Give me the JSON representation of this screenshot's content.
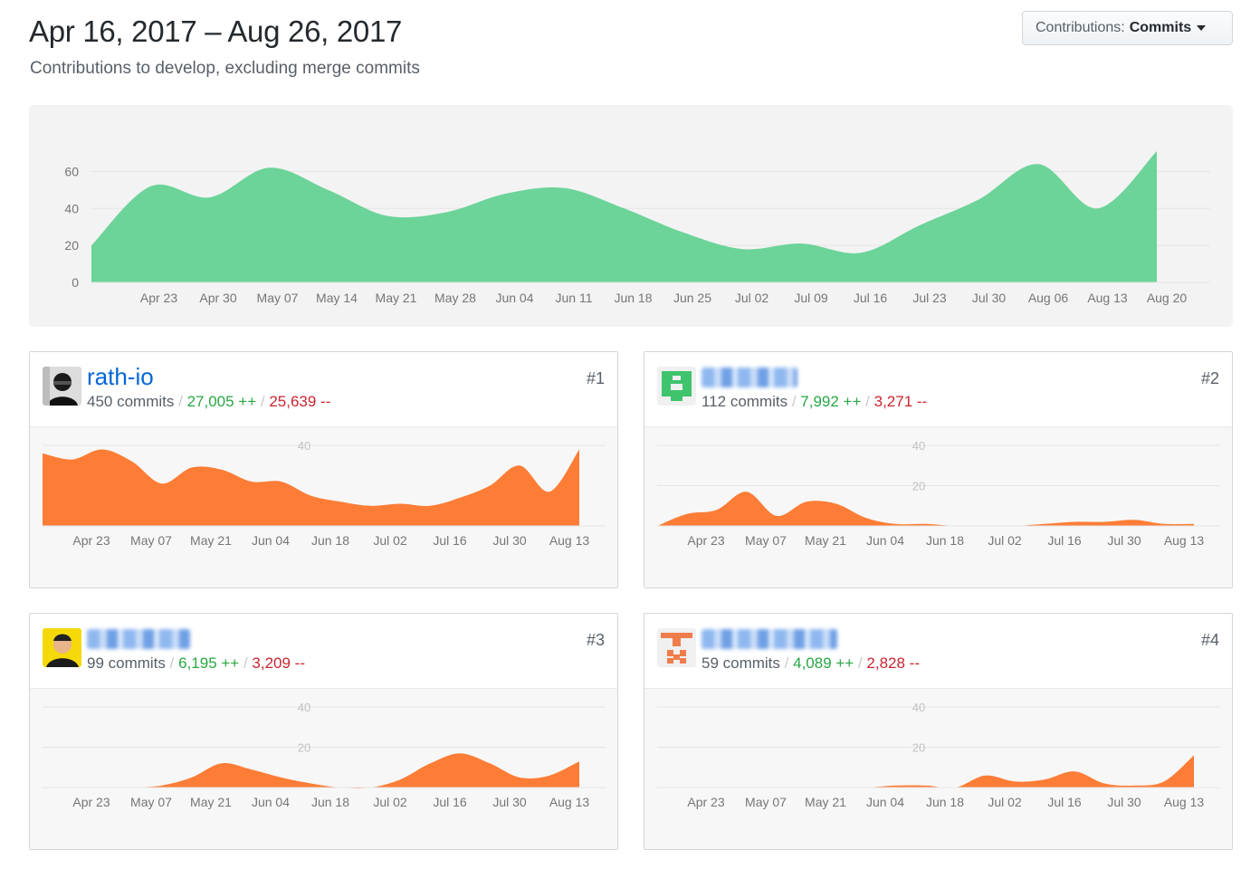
{
  "header": {
    "title": "Apr 16, 2017 – Aug 26, 2017",
    "subtitle": "Contributions to develop, excluding merge commits"
  },
  "dropdown": {
    "prefix": "Contributions:",
    "value": "Commits"
  },
  "colors": {
    "overview_fill": "#6cd399",
    "contributor_fill": "#fd7d36",
    "additions": "#28a745",
    "deletions": "#cb2431",
    "link": "#0366d6"
  },
  "chart_data": [
    {
      "type": "area",
      "x": [
        "Apr 16",
        "Apr 23",
        "Apr 30",
        "May 07",
        "May 14",
        "May 21",
        "May 28",
        "Jun 04",
        "Jun 11",
        "Jun 18",
        "Jun 25",
        "Jul 02",
        "Jul 09",
        "Jul 16",
        "Jul 23",
        "Jul 30",
        "Aug 06",
        "Aug 13",
        "Aug 20"
      ],
      "values": [
        20,
        52,
        46,
        62,
        50,
        36,
        38,
        48,
        51,
        40,
        27,
        18,
        21,
        16,
        31,
        45,
        64,
        40,
        71
      ],
      "tick_labels": [
        "Apr 23",
        "Apr 30",
        "May 07",
        "May 14",
        "May 21",
        "May 28",
        "Jun 04",
        "Jun 11",
        "Jun 18",
        "Jun 25",
        "Jul 02",
        "Jul 09",
        "Jul 16",
        "Jul 23",
        "Jul 30",
        "Aug 06",
        "Aug 13",
        "Aug 20"
      ],
      "y_ticks": [
        "0",
        "20",
        "40",
        "60"
      ],
      "ylim": [
        0,
        70
      ],
      "grid": true
    },
    {
      "type": "area",
      "x": [
        "Apr 16",
        "Apr 23",
        "Apr 30",
        "May 07",
        "May 14",
        "May 21",
        "May 28",
        "Jun 04",
        "Jun 11",
        "Jun 18",
        "Jun 25",
        "Jul 02",
        "Jul 09",
        "Jul 16",
        "Jul 23",
        "Jul 30",
        "Aug 06",
        "Aug 13",
        "Aug 20"
      ],
      "values": [
        36,
        33,
        38,
        32,
        21,
        29,
        28,
        22,
        22,
        15,
        12,
        10,
        11,
        10,
        14,
        20,
        30,
        17,
        38
      ],
      "tick_labels": [
        "Apr 23",
        "May 07",
        "May 21",
        "Jun 04",
        "Jun 18",
        "Jul 02",
        "Jul 16",
        "Jul 30",
        "Aug 13"
      ],
      "y_ticks": [
        "40"
      ],
      "ylim": [
        0,
        40
      ]
    },
    {
      "type": "area",
      "x": [
        "Apr 16",
        "Apr 23",
        "Apr 30",
        "May 07",
        "May 14",
        "May 21",
        "May 28",
        "Jun 04",
        "Jun 11",
        "Jun 18",
        "Jun 25",
        "Jul 02",
        "Jul 09",
        "Jul 16",
        "Jul 23",
        "Jul 30",
        "Aug 06",
        "Aug 13",
        "Aug 20"
      ],
      "values": [
        0,
        6,
        8,
        17,
        5,
        12,
        11,
        4,
        1,
        1,
        0,
        0,
        0,
        1,
        2,
        2,
        3,
        1,
        1
      ],
      "tick_labels": [
        "Apr 23",
        "May 07",
        "May 21",
        "Jun 04",
        "Jun 18",
        "Jul 02",
        "Jul 16",
        "Jul 30",
        "Aug 13"
      ],
      "y_ticks": [
        "40",
        "20"
      ],
      "ylim": [
        0,
        40
      ]
    },
    {
      "type": "area",
      "x": [
        "Apr 16",
        "Apr 23",
        "Apr 30",
        "May 07",
        "May 14",
        "May 21",
        "May 28",
        "Jun 04",
        "Jun 11",
        "Jun 18",
        "Jun 25",
        "Jul 02",
        "Jul 09",
        "Jul 16",
        "Jul 23",
        "Jul 30",
        "Aug 06",
        "Aug 13",
        "Aug 20"
      ],
      "values": [
        0,
        0,
        0,
        0,
        1,
        5,
        12,
        9,
        5,
        2,
        0,
        0,
        4,
        12,
        17,
        12,
        5,
        6,
        13
      ],
      "tick_labels": [
        "Apr 23",
        "May 07",
        "May 21",
        "Jun 04",
        "Jun 18",
        "Jul 02",
        "Jul 16",
        "Jul 30",
        "Aug 13"
      ],
      "y_ticks": [
        "40",
        "20"
      ],
      "ylim": [
        0,
        40
      ]
    },
    {
      "type": "area",
      "x": [
        "Apr 16",
        "Apr 23",
        "Apr 30",
        "May 07",
        "May 14",
        "May 21",
        "May 28",
        "Jun 04",
        "Jun 11",
        "Jun 18",
        "Jun 25",
        "Jul 02",
        "Jul 09",
        "Jul 16",
        "Jul 23",
        "Jul 30",
        "Aug 06",
        "Aug 13",
        "Aug 20"
      ],
      "values": [
        0,
        0,
        0,
        0,
        0,
        0,
        0,
        0,
        1,
        1,
        0,
        6,
        3,
        4,
        8,
        2,
        1,
        3,
        16
      ],
      "tick_labels": [
        "Apr 23",
        "May 07",
        "May 21",
        "Jun 04",
        "Jun 18",
        "Jul 02",
        "Jul 16",
        "Jul 30",
        "Aug 13"
      ],
      "y_ticks": [
        "40",
        "20"
      ],
      "ylim": [
        0,
        40
      ]
    }
  ],
  "contributors": [
    {
      "rank": "#1",
      "username": "rath-io",
      "commits": "450 commits",
      "additions": "27,005 ++",
      "deletions": "25,639 --",
      "avatar_icon": "dark-photo-avatar-icon"
    },
    {
      "rank": "#2",
      "username": "",
      "commits": "112 commits",
      "additions": "7,992 ++",
      "deletions": "3,271 --",
      "avatar_icon": "green-identicon-avatar-icon"
    },
    {
      "rank": "#3",
      "username": "",
      "commits": "99 commits",
      "additions": "6,195 ++",
      "deletions": "3,209 --",
      "avatar_icon": "yellow-photo-avatar-icon"
    },
    {
      "rank": "#4",
      "username": "",
      "commits": "59 commits",
      "additions": "4,089 ++",
      "deletions": "2,828 --",
      "avatar_icon": "orange-identicon-avatar-icon"
    }
  ]
}
